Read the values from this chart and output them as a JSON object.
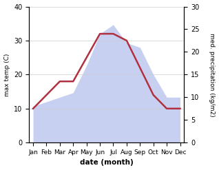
{
  "months": [
    "Jan",
    "Feb",
    "Mar",
    "Apr",
    "May",
    "Jun",
    "Jul",
    "Aug",
    "Sep",
    "Oct",
    "Nov",
    "Dec"
  ],
  "month_positions": [
    0,
    1,
    2,
    3,
    4,
    5,
    6,
    7,
    8,
    9,
    10,
    11
  ],
  "temperature": [
    10,
    14,
    18,
    18,
    25,
    32,
    32,
    30,
    22,
    14,
    10,
    10
  ],
  "precipitation": [
    8,
    9,
    10,
    11,
    17,
    24,
    26,
    22,
    21,
    15,
    10,
    10
  ],
  "temp_color": "#b03040",
  "precip_fill_color": "#c8d0f2",
  "temp_ylim": [
    0,
    40
  ],
  "precip_ylim": [
    0,
    30
  ],
  "temp_yticks": [
    0,
    10,
    20,
    30,
    40
  ],
  "precip_yticks": [
    0,
    5,
    10,
    15,
    20,
    25,
    30
  ],
  "xlabel": "date (month)",
  "ylabel_left": "max temp (C)",
  "ylabel_right": "med. precipitation (kg/m2)",
  "figsize": [
    3.18,
    2.47
  ],
  "dpi": 100
}
